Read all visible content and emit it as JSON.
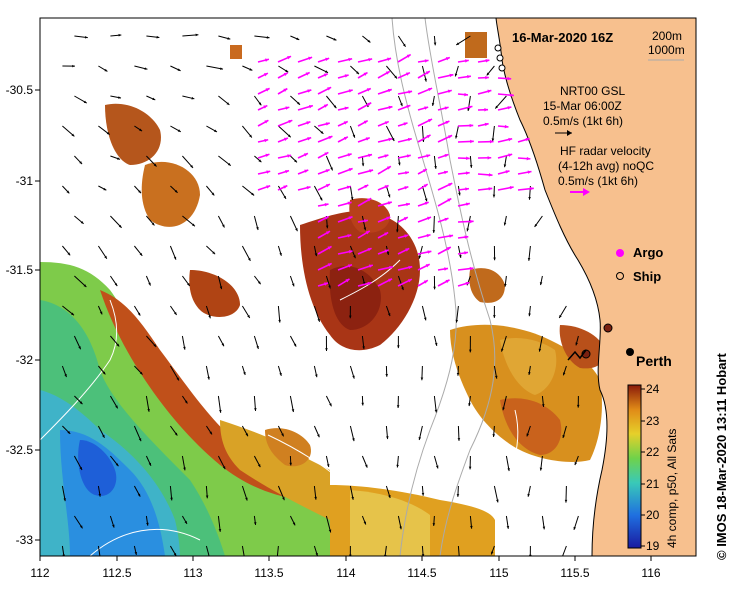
{
  "map": {
    "title": "16-Mar-2020 16Z",
    "contours": [
      "200m",
      "1000m"
    ],
    "credit": "© IMOS 18-Mar-2020 13:11 Hobart",
    "x_ticks": [
      "112",
      "112.5",
      "113",
      "113.5",
      "114",
      "114.5",
      "115",
      "115.5",
      "116"
    ],
    "y_ticks": [
      "-30.5",
      "-31",
      "-31.5",
      "-32",
      "-32.5",
      "-33"
    ],
    "legend": {
      "gsl_title": "NRT00 GSL",
      "gsl_time": "15-Mar 06:00Z",
      "gsl_scale": "0.5m/s (1kt 6h)",
      "hf_title": "HF radar velocity",
      "hf_avg": "(4-12h avg) noQC",
      "hf_scale": "0.5m/s (1kt 6h)",
      "argo": "Argo",
      "ship": "Ship"
    },
    "place": "Perth",
    "colorbar": {
      "ticks": [
        "24",
        "23",
        "22",
        "21",
        "20",
        "19"
      ],
      "label": "4h comp, p50, All Sats"
    },
    "colors": {
      "land": "#f7c08e",
      "hf_vector": "#ff00ff",
      "gsl_vector": "#000000",
      "contour": "#aaaaaa"
    },
    "icons": [
      "argo-icon",
      "ship-icon",
      "perth-marker-icon"
    ]
  }
}
